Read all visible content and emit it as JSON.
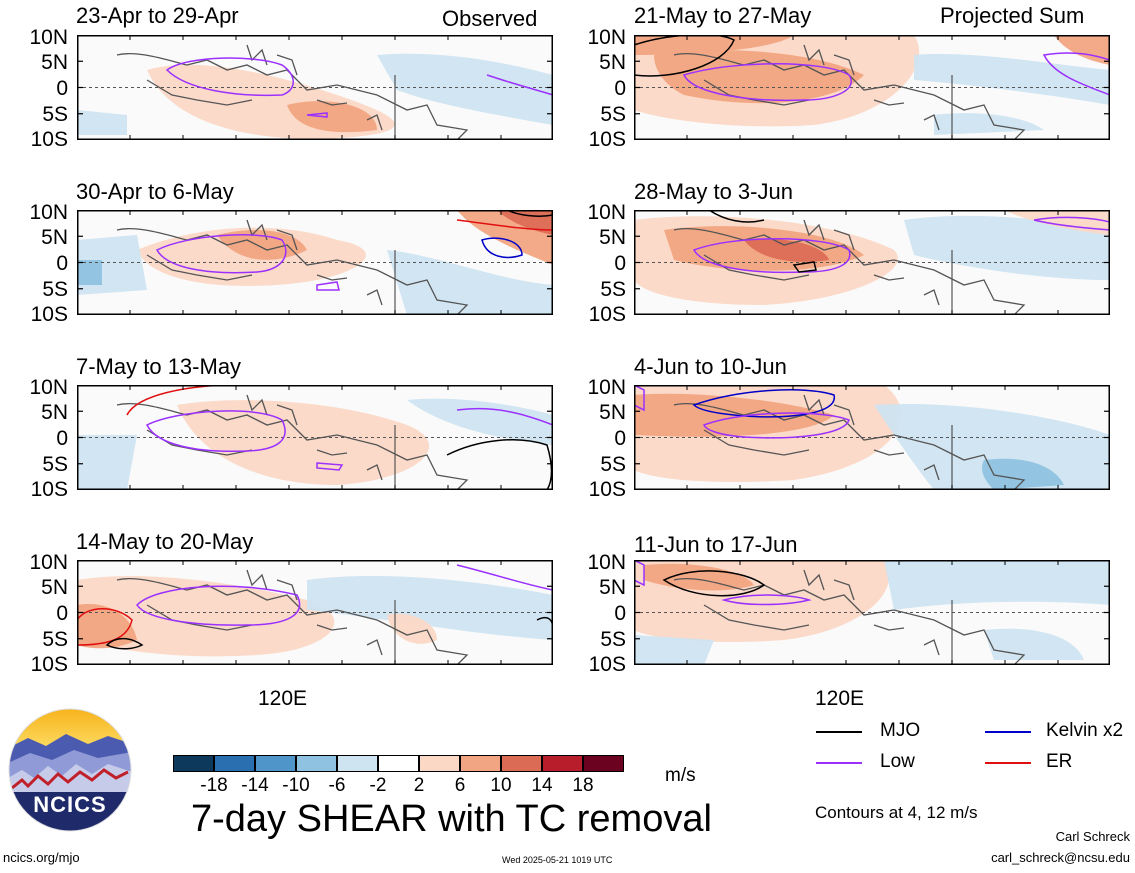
{
  "left_tag": "Observed",
  "right_tag": "Projected Sum",
  "lat_labels": [
    "10N",
    "5N",
    "0",
    "5S",
    "10S"
  ],
  "lon_label": "120E",
  "panels": [
    {
      "id": "p1",
      "date": "23-Apr to 29-Apr"
    },
    {
      "id": "p2",
      "date": "30-Apr to 6-May"
    },
    {
      "id": "p3",
      "date": "7-May to 13-May"
    },
    {
      "id": "p4",
      "date": "14-May to 20-May"
    },
    {
      "id": "p5",
      "date": "21-May to 27-May"
    },
    {
      "id": "p6",
      "date": "28-May to 3-Jun"
    },
    {
      "id": "p7",
      "date": "4-Jun to 10-Jun"
    },
    {
      "id": "p8",
      "date": "11-Jun to 17-Jun"
    }
  ],
  "colorbar": {
    "colors": [
      "#0d3a5c",
      "#2a6fb0",
      "#4f95c9",
      "#8fc2e0",
      "#cfe4f1",
      "#ffffff",
      "#fbd8c6",
      "#f2a582",
      "#dc6b55",
      "#b81d2c",
      "#6b0320"
    ],
    "labels": [
      "-18",
      "-14",
      "-10",
      "-6",
      "-2",
      "2",
      "6",
      "10",
      "14",
      "18"
    ],
    "units": "m/s"
  },
  "title": "7-day SHEAR with TC removal",
  "legend": {
    "items": [
      {
        "label": "MJO",
        "color": "#000000"
      },
      {
        "label": "Kelvin x2",
        "color": "#0000c8"
      },
      {
        "label": "Low",
        "color": "#9b30ff"
      },
      {
        "label": "ER",
        "color": "#e01010"
      }
    ],
    "note": "Contours at 4, 12 m/s"
  },
  "logo_text": "NCICS",
  "footer": {
    "left": "ncics.org/mjo",
    "center": "Wed 2025-05-21 1019 UTC",
    "author": "Carl Schreck",
    "email": "carl_schreck@ncsu.edu"
  }
}
